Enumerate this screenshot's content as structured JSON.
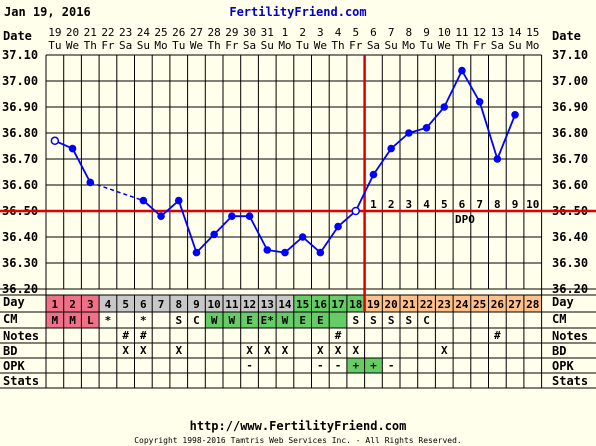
{
  "header": {
    "date": "Jan 19, 2016",
    "site": "FertilityFriend.com"
  },
  "footer": {
    "url": "http://www.FertilityFriend.com",
    "copyright": "Copyright 1998-2016 Tamtris Web Services Inc. - All Rights Reserved."
  },
  "row_labels": {
    "date": "Date",
    "day": "Day",
    "cm": "CM",
    "notes": "Notes",
    "bd": "BD",
    "opk": "OPK",
    "stats": "Stats"
  },
  "colors": {
    "background": "#ffffec",
    "grid": "#000000",
    "temp_line": "#0000ff",
    "coverline": "#dd0000",
    "ovulation_line": "#dd0000",
    "day_cell": "#c8c8c8",
    "period_cell": "#f07088",
    "fertile_cell": "#66cc66",
    "luteal_cell": "#ffc08a",
    "link": "#0000cc"
  },
  "chart_data": {
    "type": "line",
    "ylabel": "",
    "ylim": [
      36.2,
      37.1
    ],
    "yticks": [
      "36.20",
      "36.30",
      "36.40",
      "36.50",
      "36.60",
      "36.70",
      "36.80",
      "36.90",
      "37.00",
      "37.10"
    ],
    "cycle_days": [
      "1",
      "2",
      "3",
      "4",
      "5",
      "6",
      "7",
      "8",
      "9",
      "10",
      "11",
      "12",
      "13",
      "14",
      "15",
      "16",
      "17",
      "18",
      "19",
      "20",
      "21",
      "22",
      "23",
      "24",
      "25",
      "26",
      "27",
      "28"
    ],
    "dates": [
      "19",
      "20",
      "21",
      "22",
      "23",
      "24",
      "25",
      "26",
      "27",
      "28",
      "29",
      "30",
      "31",
      "1",
      "2",
      "3",
      "4",
      "5",
      "6",
      "7",
      "8",
      "9",
      "10",
      "11",
      "12",
      "13",
      "14",
      "15"
    ],
    "weekdays": [
      "Tu",
      "We",
      "Th",
      "Fr",
      "Sa",
      "Su",
      "Mo",
      "Tu",
      "We",
      "Th",
      "Fr",
      "Sa",
      "Su",
      "Mo",
      "Tu",
      "We",
      "Th",
      "Fr",
      "Sa",
      "Su",
      "Mo",
      "Tu",
      "We",
      "Th",
      "Fr",
      "Sa",
      "Su",
      "Mo"
    ],
    "temperatures": [
      36.77,
      36.74,
      36.61,
      null,
      null,
      36.54,
      36.48,
      36.54,
      36.34,
      36.41,
      36.48,
      36.48,
      36.35,
      36.34,
      36.4,
      36.34,
      36.44,
      36.5,
      36.64,
      36.74,
      36.8,
      36.82,
      36.9,
      37.04,
      36.92,
      36.7,
      36.87,
      null
    ],
    "open_points": [
      1,
      18
    ],
    "dashed_segments": [
      [
        3,
        6
      ]
    ],
    "coverline": 36.5,
    "ovulation_day": 18,
    "dpo_label": "DPO",
    "dpo_numbers": [
      "1",
      "2",
      "3",
      "4",
      "5",
      "6",
      "7",
      "8",
      "9",
      "10"
    ],
    "cm": [
      "M",
      "M",
      "L",
      "*",
      "",
      "*",
      "",
      "S",
      "C",
      "W",
      "W",
      "E",
      "E*",
      "W",
      "E",
      "E",
      "",
      "S",
      "S",
      "S",
      "S",
      "C",
      "",
      "",
      "",
      "",
      "",
      ""
    ],
    "notes": [
      "",
      "",
      "",
      "",
      "#",
      "#",
      "",
      "",
      "",
      "",
      "",
      "",
      "",
      "",
      "",
      "",
      "#",
      "",
      "",
      "",
      "",
      "",
      "",
      "",
      "",
      "#",
      "",
      ""
    ],
    "bd": [
      "",
      "",
      "",
      "",
      "X",
      "X",
      "",
      "X",
      "",
      "",
      "",
      "X",
      "X",
      "X",
      "",
      "X",
      "X",
      "X",
      "",
      "",
      "",
      "",
      "X",
      "",
      "",
      "",
      "",
      ""
    ],
    "opk": [
      "",
      "",
      "",
      "",
      "",
      "",
      "",
      "",
      "",
      "",
      "",
      "-",
      "",
      "",
      "",
      "-",
      "-",
      "+",
      "+",
      "-",
      "",
      "",
      "",
      "",
      "",
      "",
      "",
      ""
    ],
    "day_row_colors": [
      "period",
      "period",
      "period",
      "plain",
      "plain",
      "plain",
      "plain",
      "plain",
      "plain",
      "plain",
      "plain",
      "plain",
      "plain",
      "plain",
      "fertile",
      "fertile",
      "fertile",
      "fertile",
      "luteal",
      "luteal",
      "luteal",
      "luteal",
      "luteal",
      "luteal",
      "luteal",
      "luteal",
      "luteal",
      "luteal"
    ],
    "cm_row_colors": [
      "period",
      "period",
      "period",
      "plain",
      "plain",
      "plain",
      "plain",
      "plain",
      "plain",
      "fertile",
      "fertile",
      "fertile",
      "fertile",
      "fertile",
      "fertile",
      "fertile",
      "fertile",
      "plain",
      "plain",
      "plain",
      "plain",
      "plain",
      "plain",
      "plain",
      "plain",
      "plain",
      "plain",
      "plain"
    ],
    "opk_row_colors": [
      "plain",
      "plain",
      "plain",
      "plain",
      "plain",
      "plain",
      "plain",
      "plain",
      "plain",
      "plain",
      "plain",
      "plain",
      "plain",
      "plain",
      "plain",
      "plain",
      "plain",
      "fertile",
      "fertile",
      "plain",
      "plain",
      "plain",
      "plain",
      "plain",
      "plain",
      "plain",
      "plain",
      "plain"
    ]
  }
}
